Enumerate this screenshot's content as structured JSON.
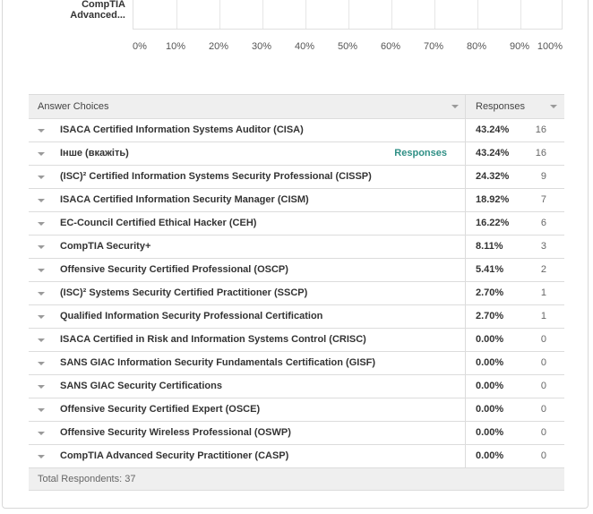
{
  "chart": {
    "last_category_label": "CompTIA Advanced...",
    "ticks": [
      "0%",
      "10%",
      "20%",
      "30%",
      "40%",
      "50%",
      "60%",
      "70%",
      "80%",
      "90%",
      "100%"
    ]
  },
  "table": {
    "header_answer": "Answer Choices",
    "header_responses": "Responses",
    "responses_link": "Responses",
    "rows": [
      {
        "label": "ISACA Certified Information Systems Auditor (CISA)",
        "pct": "43.24%",
        "count": "16"
      },
      {
        "label": "Інше (вкажіть)",
        "pct": "43.24%",
        "count": "16"
      },
      {
        "label": "(ISC)² Certified Information Systems Security Professional (CISSP)",
        "pct": "24.32%",
        "count": "9"
      },
      {
        "label": "ISACA Certified Information Security Manager (CISM)",
        "pct": "18.92%",
        "count": "7"
      },
      {
        "label": "EC-Council Certified Ethical Hacker (CEH)",
        "pct": "16.22%",
        "count": "6"
      },
      {
        "label": "CompTIA Security+",
        "pct": "8.11%",
        "count": "3"
      },
      {
        "label": "Offensive Security Certified Professional (OSCP)",
        "pct": "5.41%",
        "count": "2"
      },
      {
        "label": "(ISC)² Systems Security Certified Practitioner (SSCP)",
        "pct": "2.70%",
        "count": "1"
      },
      {
        "label": "Qualified Information Security Professional Certification",
        "pct": "2.70%",
        "count": "1"
      },
      {
        "label": "ISACA Certified in Risk and Information Systems Control (CRISC)",
        "pct": "0.00%",
        "count": "0"
      },
      {
        "label": "SANS GIAC Information Security Fundamentals Certification (GISF)",
        "pct": "0.00%",
        "count": "0"
      },
      {
        "label": "SANS GIAC Security Certifications",
        "pct": "0.00%",
        "count": "0"
      },
      {
        "label": "Offensive Security Certified Expert (OSCE)",
        "pct": "0.00%",
        "count": "0"
      },
      {
        "label": "Offensive Security Wireless Professional (OSWP)",
        "pct": "0.00%",
        "count": "0"
      },
      {
        "label": "CompTIA Advanced Security Practitioner (CASP)",
        "pct": "0.00%",
        "count": "0"
      }
    ],
    "total_label": "Total Respondents: 37"
  }
}
